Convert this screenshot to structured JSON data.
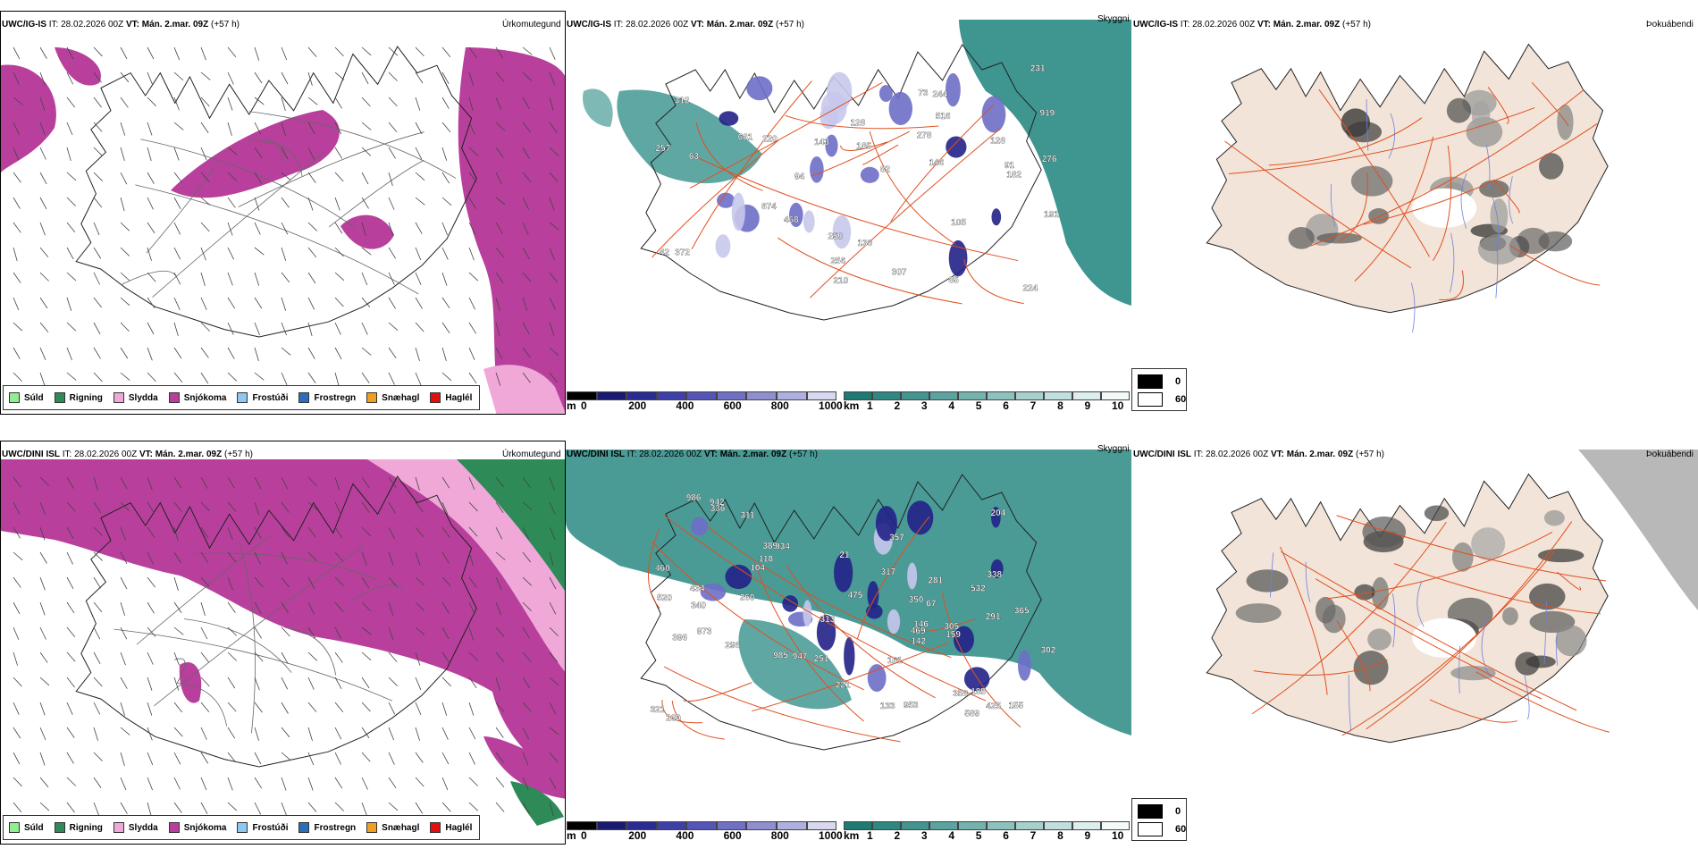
{
  "rows": [
    {
      "model": "UWC/IG-IS",
      "it": "IT: 28.02.2026 00Z",
      "vt_label": "VT: Mán. 2.mar. 09Z",
      "lead": "(+57 h)"
    },
    {
      "model": "UWC/DINI ISL",
      "it": "IT: 28.02.2026 00Z",
      "vt_label": "VT: Mán. 2.mar. 09Z",
      "lead": "(+57 h)"
    }
  ],
  "panel_titles": {
    "precip": "Úrkomutegund",
    "visibility": "Skyggni",
    "fog": "Þokuábendi"
  },
  "precip_legend": [
    {
      "label": "Súld",
      "color": "#90ee90"
    },
    {
      "label": "Rigning",
      "color": "#2e8b57"
    },
    {
      "label": "Slydda",
      "color": "#f0a8d8"
    },
    {
      "label": "Snjókoma",
      "color": "#b8409c"
    },
    {
      "label": "Frostúði",
      "color": "#8ec8f0"
    },
    {
      "label": "Frostregn",
      "color": "#2a6fb8"
    },
    {
      "label": "Snæhagl",
      "color": "#f0a020"
    },
    {
      "label": "Haglél",
      "color": "#e01010"
    }
  ],
  "ceiling_bar": {
    "unit": "m",
    "ticks": [
      "0",
      "200",
      "400",
      "600",
      "800",
      "1000"
    ],
    "colors": [
      "#000000",
      "#1a1a70",
      "#2b2b94",
      "#3f3fa8",
      "#5555b8",
      "#7070c4",
      "#8f8fd0",
      "#b0b0e0",
      "#d8d8f0"
    ]
  },
  "visibility_bar": {
    "unit": "km",
    "ticks": [
      "1",
      "2",
      "3",
      "4",
      "5",
      "6",
      "7",
      "8",
      "9",
      "10"
    ],
    "colors": [
      "#1f7a74",
      "#2e8781",
      "#44948f",
      "#5ba39e",
      "#74b2ad",
      "#8dc1bd",
      "#a7d0cc",
      "#c1dfdc",
      "#dceeed",
      "#f4fafa"
    ]
  },
  "fog_legend": [
    {
      "label": "0",
      "color": "#000000"
    },
    {
      "label": "60",
      "color": "#ffffff"
    }
  ],
  "ceiling_labels": [
    [
      "138",
      "191",
      "312",
      "231",
      "372",
      "919",
      "146",
      "224",
      "105",
      "63",
      "182",
      "85",
      "128",
      "874",
      "220",
      "661",
      "250",
      "244",
      "307",
      "516",
      "468",
      "276",
      "143",
      "185",
      "73",
      "91",
      "82",
      "257",
      "256",
      "128",
      "94",
      "210",
      "278",
      "42"
    ],
    [
      "985",
      "338",
      "313",
      "475",
      "934",
      "973",
      "155",
      "589",
      "104",
      "291",
      "133",
      "942",
      "146",
      "520",
      "336",
      "281",
      "221",
      "161",
      "118",
      "260",
      "532",
      "159",
      "469",
      "434",
      "251",
      "396",
      "204",
      "953",
      "185",
      "947",
      "305",
      "298",
      "302",
      "269",
      "317",
      "460",
      "365",
      "389",
      "425",
      "350",
      "142",
      "358",
      "357",
      "321",
      "340",
      "986",
      "67",
      "311",
      "21"
    ]
  ],
  "colors": {
    "snow": "#b8409c",
    "sleet": "#f0a8d8",
    "rain": "#2e8b57",
    "teal": "#2a8a84",
    "land": "#f2e4d8",
    "road": "#e05020",
    "ceilingDark": "#222288",
    "ceilingMid": "#6e6ec8",
    "ceilingLight": "#c8c8ec"
  }
}
